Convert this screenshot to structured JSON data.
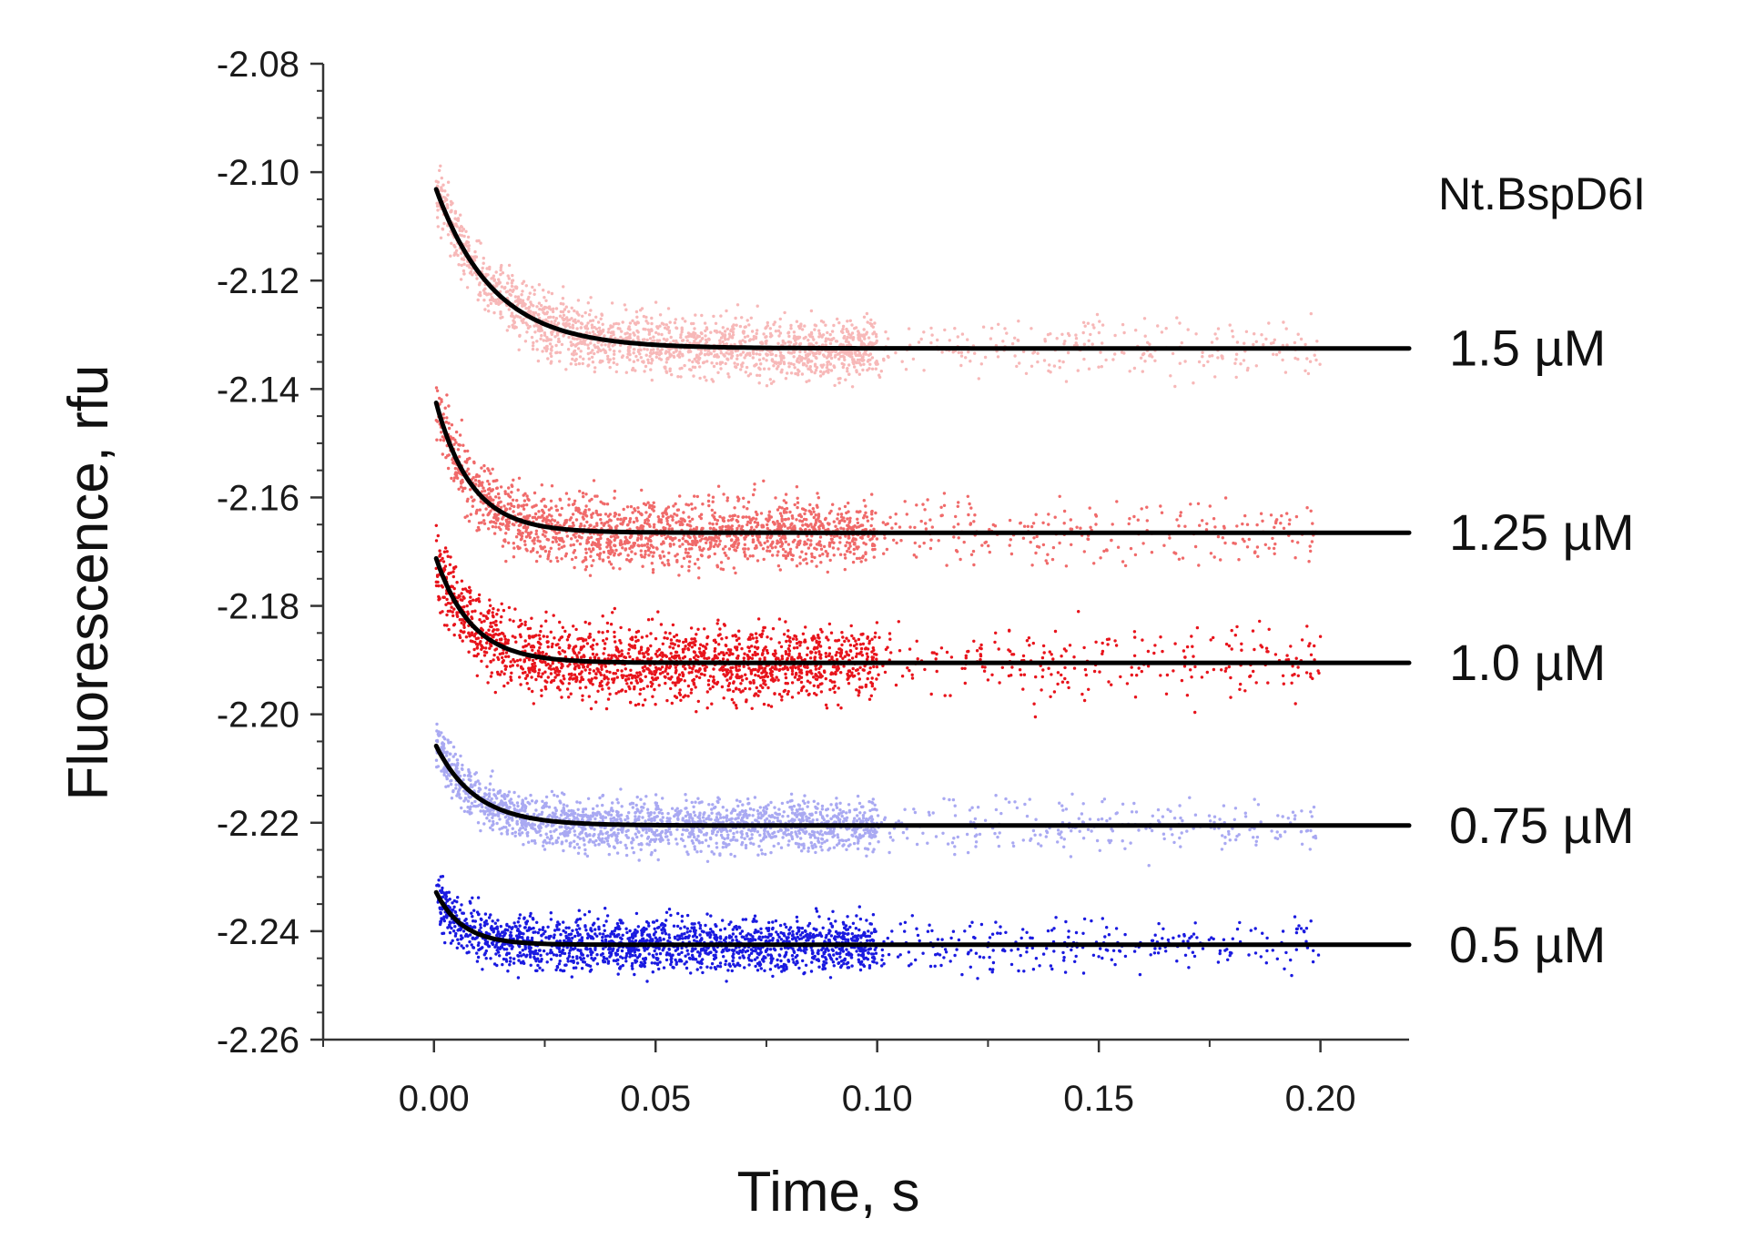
{
  "chart_data": {
    "type": "scatter",
    "title": "",
    "xlabel": "Time, s",
    "ylabel": "Fluorescence, rfu",
    "xlim": [
      -0.025,
      0.22
    ],
    "ylim": [
      -2.26,
      -2.08
    ],
    "x_ticks": [
      0.0,
      0.05,
      0.1,
      0.15,
      0.2
    ],
    "x_tick_labels": [
      "0.00",
      "0.05",
      "0.10",
      "0.15",
      "0.20"
    ],
    "y_ticks": [
      -2.08,
      -2.1,
      -2.12,
      -2.14,
      -2.16,
      -2.18,
      -2.2,
      -2.22,
      -2.24,
      -2.26
    ],
    "y_tick_labels": [
      "-2.08",
      "-2.10",
      "-2.12",
      "-2.14",
      "-2.16",
      "-2.18",
      "-2.20",
      "-2.22",
      "-2.24",
      "-2.26"
    ],
    "grid": false,
    "annotation": "Nt.BspD6I",
    "fit_color": "#000000",
    "series": [
      {
        "name": "1.5 µM",
        "color": "#f7b8b8",
        "start": -2.102,
        "plateau": -2.1325,
        "tau": 0.013,
        "noise": 0.004
      },
      {
        "name": "1.25 µM",
        "color": "#f06a6a",
        "start": -2.141,
        "plateau": -2.1665,
        "tau": 0.008,
        "noise": 0.0045
      },
      {
        "name": "1.0 µM",
        "color": "#e8141c",
        "start": -2.17,
        "plateau": -2.1905,
        "tau": 0.008,
        "noise": 0.005
      },
      {
        "name": "0.75 µM",
        "color": "#a9a9f2",
        "start": -2.205,
        "plateau": -2.2205,
        "tau": 0.009,
        "noise": 0.0035
      },
      {
        "name": "0.5 µM",
        "color": "#1a1ae0",
        "start": -2.232,
        "plateau": -2.2425,
        "tau": 0.006,
        "noise": 0.0035
      }
    ]
  }
}
